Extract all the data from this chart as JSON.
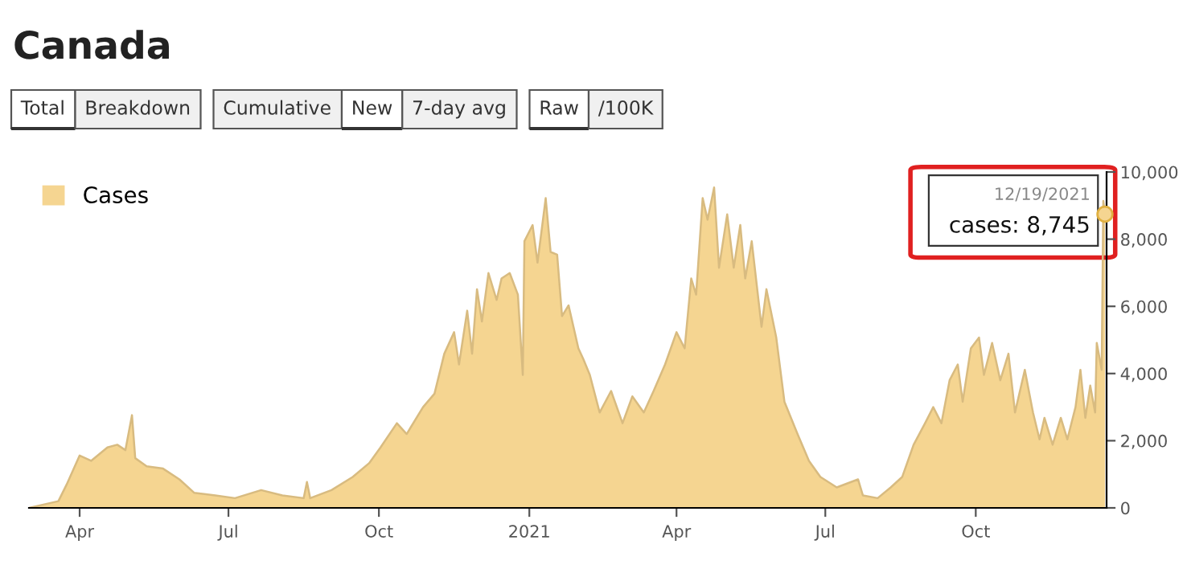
{
  "chart_data": {
    "type": "area",
    "title": "Canada",
    "x": [
      "2020-03-01",
      "2020-03-19",
      "2020-03-24",
      "2020-04-01",
      "2020-04-08",
      "2020-04-18",
      "2020-04-24",
      "2020-04-29",
      "2020-05-03",
      "2020-05-05",
      "2020-05-12",
      "2020-05-22",
      "2020-06-01",
      "2020-06-10",
      "2020-06-23",
      "2020-07-05",
      "2020-07-21",
      "2020-08-03",
      "2020-08-16",
      "2020-08-18",
      "2020-08-20",
      "2020-09-02",
      "2020-09-15",
      "2020-09-25",
      "2020-10-02",
      "2020-10-12",
      "2020-10-18",
      "2020-10-28",
      "2020-11-04",
      "2020-11-10",
      "2020-11-16",
      "2020-11-19",
      "2020-11-24",
      "2020-11-27",
      "2020-11-30",
      "2020-12-03",
      "2020-12-07",
      "2020-12-12",
      "2020-12-15",
      "2020-12-20",
      "2020-12-25",
      "2020-12-28",
      "2020-12-29",
      "2021-01-03",
      "2021-01-06",
      "2021-01-11",
      "2021-01-14",
      "2021-01-18",
      "2021-01-21",
      "2021-01-25",
      "2021-01-31",
      "2021-02-03",
      "2021-02-07",
      "2021-02-13",
      "2021-02-20",
      "2021-02-27",
      "2021-03-05",
      "2021-03-12",
      "2021-03-18",
      "2021-03-25",
      "2021-04-01",
      "2021-04-06",
      "2021-04-10",
      "2021-04-13",
      "2021-04-17",
      "2021-04-20",
      "2021-04-24",
      "2021-04-27",
      "2021-05-02",
      "2021-05-06",
      "2021-05-10",
      "2021-05-13",
      "2021-05-17",
      "2021-05-23",
      "2021-05-26",
      "2021-06-01",
      "2021-06-06",
      "2021-06-14",
      "2021-06-21",
      "2021-06-28",
      "2021-07-08",
      "2021-07-21",
      "2021-07-24",
      "2021-08-02",
      "2021-08-10",
      "2021-08-17",
      "2021-08-24",
      "2021-08-31",
      "2021-09-05",
      "2021-09-10",
      "2021-09-15",
      "2021-09-20",
      "2021-09-23",
      "2021-09-28",
      "2021-10-03",
      "2021-10-06",
      "2021-10-11",
      "2021-10-16",
      "2021-10-21",
      "2021-10-25",
      "2021-10-31",
      "2021-11-05",
      "2021-11-09",
      "2021-11-12",
      "2021-11-17",
      "2021-11-22",
      "2021-11-26",
      "2021-12-01",
      "2021-12-04",
      "2021-12-07",
      "2021-12-10",
      "2021-12-13",
      "2021-12-14",
      "2021-12-17",
      "2021-12-18",
      "2021-12-19"
    ],
    "series": [
      {
        "name": "Cases",
        "color": "#f5d591",
        "values": [
          0,
          200,
          690,
          1560,
          1400,
          1800,
          1880,
          1720,
          2760,
          1480,
          1240,
          1170,
          850,
          450,
          370,
          290,
          530,
          370,
          290,
          770,
          290,
          530,
          920,
          1330,
          1800,
          2520,
          2200,
          3000,
          3400,
          4590,
          5230,
          4270,
          5870,
          4590,
          6510,
          5550,
          6990,
          6190,
          6830,
          6990,
          6350,
          3960,
          7940,
          8420,
          7300,
          9220,
          7620,
          7540,
          5710,
          6030,
          4750,
          4430,
          3960,
          2840,
          3480,
          2520,
          3320,
          2840,
          3480,
          4270,
          5230,
          4750,
          6830,
          6350,
          9220,
          8580,
          9540,
          7150,
          8740,
          7150,
          8420,
          6830,
          7940,
          5390,
          6510,
          5070,
          3160,
          2200,
          1400,
          920,
          610,
          850,
          370,
          290,
          610,
          920,
          1880,
          2520,
          3000,
          2520,
          3800,
          4270,
          3160,
          4750,
          5070,
          3960,
          4910,
          3800,
          4590,
          2840,
          4110,
          2840,
          2040,
          2680,
          1880,
          2680,
          2040,
          3000,
          4110,
          2680,
          3640,
          2840,
          4910,
          4110,
          9140,
          8745
        ]
      }
    ],
    "xlim": [
      "2020-03-01",
      "2021-12-20"
    ],
    "xticks": [
      {
        "value": "2020-04-01",
        "label": "Apr"
      },
      {
        "value": "2020-07-01",
        "label": "Jul"
      },
      {
        "value": "2020-10-01",
        "label": "Oct"
      },
      {
        "value": "2021-01-01",
        "label": "2021"
      },
      {
        "value": "2021-04-01",
        "label": "Apr"
      },
      {
        "value": "2021-07-01",
        "label": "Jul"
      },
      {
        "value": "2021-10-01",
        "label": "Oct"
      }
    ],
    "ylim": [
      0,
      10000
    ],
    "yticks": [
      0,
      {
        "value": 2000,
        "label": "2,000"
      },
      {
        "value": 4000,
        "label": "4,000"
      },
      {
        "value": 6000,
        "label": "6,000"
      },
      {
        "value": 8000,
        "label": "8,000"
      },
      {
        "value": 10000,
        "label": "10,000"
      }
    ],
    "grid": false,
    "legend": "top left",
    "annotations": [
      "Total",
      "Breakdown",
      "Cumulative",
      "New",
      "7-day avg",
      "Raw",
      "/100K",
      {
        "text": "12/19/2021",
        "x": "2021-12-19",
        "y": 8745
      },
      {
        "text": "cases: 8,745",
        "x": "2021-12-19",
        "y": 8745
      }
    ]
  }
}
